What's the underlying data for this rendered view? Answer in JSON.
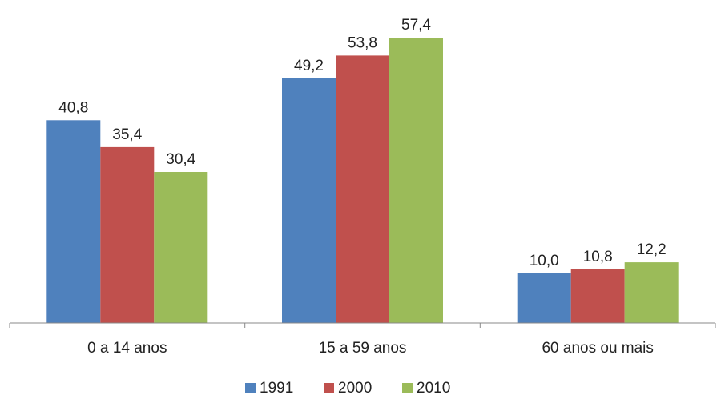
{
  "chart_data": {
    "type": "bar",
    "categories": [
      "0 a 14 anos",
      "15 a 59 anos",
      "60 anos ou mais"
    ],
    "series": [
      {
        "name": "1991",
        "values": [
          40.8,
          49.2,
          10.0
        ],
        "labels": [
          "40,8",
          "49,2",
          "10,0"
        ],
        "color": "#4f81bd"
      },
      {
        "name": "2000",
        "values": [
          35.4,
          53.8,
          10.8
        ],
        "labels": [
          "35,4",
          "53,8",
          "10,8"
        ],
        "color": "#c0504d"
      },
      {
        "name": "2010",
        "values": [
          30.4,
          57.4,
          12.2
        ],
        "labels": [
          "30,4",
          "57,4",
          "12,2"
        ],
        "color": "#9bbb59"
      }
    ],
    "ylim": [
      0,
      64
    ],
    "grid": false,
    "legend_position": "bottom"
  }
}
